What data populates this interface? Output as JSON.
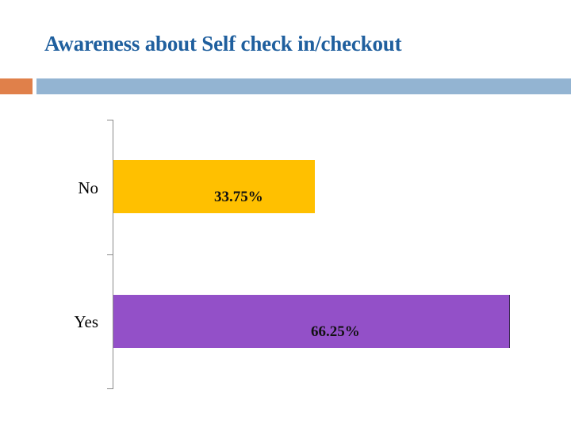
{
  "slide": {
    "title": "Awareness about Self check in/checkout",
    "accent_colors": {
      "orange": "#e0804a",
      "blue": "#93b4d2"
    },
    "title_color": "#1f5f9e"
  },
  "chart_data": {
    "type": "bar",
    "orientation": "horizontal",
    "title": "",
    "categories": [
      "No",
      "Yes"
    ],
    "values": [
      33.75,
      66.25
    ],
    "value_labels": [
      "33.75%",
      "66.25%"
    ],
    "colors": [
      "#ffc000",
      "#9350c8"
    ],
    "xlabel": "",
    "ylabel": "",
    "xlim": [
      0,
      66.25
    ],
    "grid": false,
    "legend": null
  }
}
